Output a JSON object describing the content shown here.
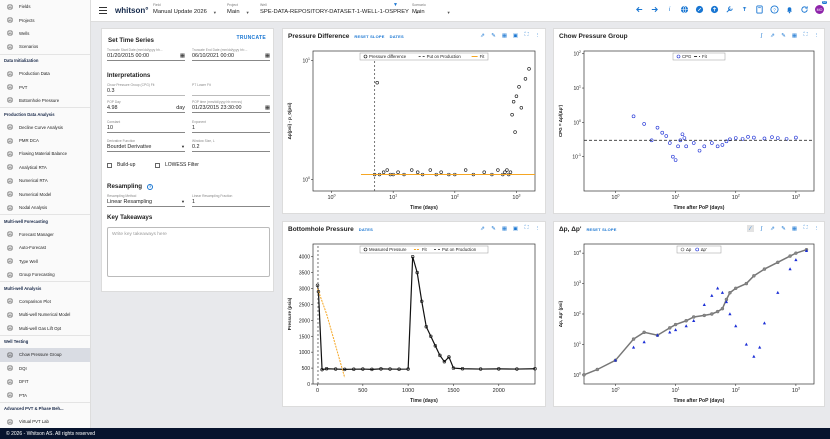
{
  "sidebar": {
    "items": [
      {
        "type": "item",
        "label": "Fields",
        "icon": "field-icon"
      },
      {
        "type": "item",
        "label": "Projects",
        "icon": "folder-icon"
      },
      {
        "type": "item",
        "label": "Wells",
        "icon": "well-icon"
      },
      {
        "type": "item",
        "label": "Scenarios",
        "icon": "scenario-icon"
      },
      {
        "type": "head",
        "label": "Data Initialization"
      },
      {
        "type": "item",
        "label": "Production Data",
        "icon": "table-icon"
      },
      {
        "type": "item",
        "label": "PVT",
        "icon": "flask-icon"
      },
      {
        "type": "item",
        "label": "Bottomhole Pressure",
        "icon": "gauge-icon"
      },
      {
        "type": "head",
        "label": "Production Data Analysis"
      },
      {
        "type": "item",
        "label": "Decline Curve Analysis",
        "icon": "trend-icon"
      },
      {
        "type": "item",
        "label": "PMR DCA",
        "icon": "chart-icon"
      },
      {
        "type": "item",
        "label": "Flowing Material Balance",
        "icon": "balance-icon"
      },
      {
        "type": "item",
        "label": "Analytical RTA",
        "icon": "analytics-icon"
      },
      {
        "type": "item",
        "label": "Numerical RTA",
        "icon": "grid-icon"
      },
      {
        "type": "item",
        "label": "Numerical Model",
        "icon": "model-icon"
      },
      {
        "type": "item",
        "label": "Nodal Analysis",
        "icon": "nodal-icon"
      },
      {
        "type": "head",
        "label": "Multi-well Forecasting"
      },
      {
        "type": "item",
        "label": "Forecast Manager",
        "icon": "list-icon"
      },
      {
        "type": "item",
        "label": "Auto-Forecast",
        "icon": "auto-icon"
      },
      {
        "type": "item",
        "label": "Type Well",
        "icon": "typewell-icon"
      },
      {
        "type": "item",
        "label": "Group Forecasting",
        "icon": "group-icon"
      },
      {
        "type": "head",
        "label": "Multi-well Analysis"
      },
      {
        "type": "item",
        "label": "Comparison Plot",
        "icon": "compare-icon"
      },
      {
        "type": "item",
        "label": "Multi-well Numerical Model",
        "icon": "model-icon"
      },
      {
        "type": "item",
        "label": "Multi-well Gas Lift Opt",
        "icon": "lift-icon"
      },
      {
        "type": "head",
        "label": "Well Testing"
      },
      {
        "type": "item",
        "label": "Chow Pressure Group",
        "icon": "chow-icon",
        "active": true
      },
      {
        "type": "item",
        "label": "DQI",
        "icon": "dqi-icon"
      },
      {
        "type": "item",
        "label": "DFIT",
        "icon": "dfit-icon"
      },
      {
        "type": "item",
        "label": "PTA",
        "icon": "pta-icon"
      },
      {
        "type": "head",
        "label": "Advanced PVT & Phase Beh..."
      },
      {
        "type": "item",
        "label": "Virtual PVT Lab",
        "icon": "lab-icon"
      }
    ]
  },
  "footer": "© 2026 - Whitson AS. All rights reserved",
  "topbar": {
    "logo": "whitson°",
    "field": {
      "label": "Field",
      "value": "Manual Update 2026"
    },
    "project": {
      "label": "Project",
      "value": "Main"
    },
    "well": {
      "label": "Well",
      "value": "SPE-DATA-REPOSITORY-DATASET-1-WELL-1-OSPREY"
    },
    "scenario": {
      "label": "Scenario",
      "value": "Main"
    },
    "avatar": "MO",
    "notifications": "10"
  },
  "settings": {
    "title": "Set Time Series",
    "truncate": "TRUNCATE",
    "start": {
      "label": "Truncate Start Date (mm/dd/yyyy hh...",
      "value": "01/20/2015 00:00"
    },
    "end": {
      "label": "Truncate End Date (mm/dd/yyyy hh:...",
      "value": "06/10/2021 00:00"
    },
    "interp_title": "Interpretations",
    "cpg": {
      "label": "Chow Pressure Group (CPG) Fit",
      "value": "0.3"
    },
    "lower_limit": {
      "label": "PT Lower Fit",
      "value": ""
    },
    "pop_day": {
      "label": "POP Day",
      "value": "4.98",
      "unit": "day"
    },
    "pop_time": {
      "label": "POP time (mm/dd/yyyy hh:mm:ss)",
      "value": "01/23/2015 23:30:00"
    },
    "constant": {
      "label": "Constant",
      "value": "10"
    },
    "exponent": {
      "label": "Exponent",
      "value": "1"
    },
    "deriv_fn": {
      "label": "Derivative Function",
      "value": "Bourdet Derivative"
    },
    "window": {
      "label": "Window Size, L",
      "value": "0.2"
    },
    "buildup": "Build-up",
    "lowess": "LOWESS Filter",
    "resampling_title": "Resampling",
    "resampling_method": {
      "label": "Resampling Method",
      "value": "Linear Resampling"
    },
    "resampling_fraction": {
      "label": "Linear Resampling Fraction",
      "value": "1"
    },
    "takeaways_title": "Key Takeaways",
    "takeaways_placeholder": "Write key takeaways here"
  },
  "charts": {
    "pd": {
      "title": "Pressure Difference",
      "links": [
        "RESET SLOPE",
        "DATES"
      ]
    },
    "cpg": {
      "title": "Chow Pressure Group",
      "links": []
    },
    "bhp": {
      "title": "Bottomhole Pressure",
      "links": [
        "DATES"
      ]
    },
    "dp": {
      "title": "Δp, Δp'",
      "links": [
        "RESET SLOPE"
      ]
    }
  },
  "chart_data": [
    {
      "type": "scatter",
      "title": "Pressure Difference",
      "xlabel": "Time (days)",
      "ylabel": "Δp(psi) - p_0(psi)",
      "x_scale": "log",
      "y_scale": "log",
      "xlim": [
        0.5,
        2000
      ],
      "ylim": [
        0.8,
        12
      ],
      "legend": [
        "Pressure difference",
        "Put on Production",
        "Fit"
      ],
      "legend_position": "top-center",
      "x_ticks": [
        "10^0",
        "10^1",
        "10^2",
        "10^3"
      ],
      "y_ticks": [
        "10^0",
        "10^1"
      ],
      "series": [
        {
          "name": "Pressure difference",
          "x": [
            5,
            5.5,
            6,
            7,
            8,
            9,
            10,
            12,
            15,
            20,
            25,
            30,
            40,
            50,
            60,
            80,
            100,
            150,
            200,
            300,
            400,
            500,
            600,
            650,
            700,
            750,
            800,
            850,
            900,
            950,
            1000,
            1100,
            1200,
            1400,
            1600
          ],
          "y": [
            1.1,
            6.5,
            1.1,
            1.15,
            1.2,
            1.1,
            1.1,
            1.15,
            1.1,
            1.2,
            1.15,
            1.1,
            1.2,
            1.1,
            1.15,
            1.1,
            1.1,
            1.2,
            1.1,
            1.15,
            1.1,
            1.2,
            1.1,
            1.15,
            1.2,
            1.1,
            1.15,
            3.5,
            4.5,
            2.5,
            5.0,
            6.0,
            4.0,
            7.0,
            8.5
          ]
        },
        {
          "name": "Put on Production",
          "x": [
            5,
            5
          ],
          "y": [
            0.8,
            12
          ]
        },
        {
          "name": "Fit",
          "x": [
            3,
            2000
          ],
          "y": [
            1.1,
            1.1
          ]
        }
      ]
    },
    {
      "type": "scatter",
      "title": "Chow Pressure Group",
      "xlabel": "Time after PoP (days)",
      "ylabel": "CPG = Δp/(Δp')",
      "x_scale": "log",
      "y_scale": "log",
      "xlim": [
        0.3,
        2000
      ],
      "ylim": [
        0.01,
        120
      ],
      "legend": [
        "CPG",
        "Fit"
      ],
      "legend_position": "top-center",
      "x_ticks": [
        "10^0",
        "10^1",
        "10^2",
        "10^3"
      ],
      "y_ticks": [
        "10^-1",
        "10^0",
        "10^1",
        "10^2"
      ],
      "series": [
        {
          "name": "CPG",
          "x": [
            2,
            3,
            4,
            5,
            6,
            7,
            8,
            9,
            10,
            11,
            12,
            13,
            14,
            15,
            20,
            25,
            30,
            40,
            50,
            60,
            70,
            80,
            100,
            130,
            160,
            200,
            300,
            400,
            500,
            700,
            1000
          ],
          "y": [
            1.5,
            0.9,
            0.3,
            0.7,
            0.5,
            0.4,
            0.25,
            0.1,
            0.08,
            0.2,
            0.3,
            0.45,
            0.35,
            0.2,
            0.25,
            0.15,
            0.2,
            0.25,
            0.2,
            0.22,
            0.28,
            0.32,
            0.35,
            0.33,
            0.38,
            0.36,
            0.34,
            0.37,
            0.35,
            0.33,
            0.36
          ]
        },
        {
          "name": "Fit",
          "x": [
            0.3,
            2000
          ],
          "y": [
            0.3,
            0.3
          ]
        }
      ]
    },
    {
      "type": "scatter",
      "title": "Bottomhole Pressure",
      "xlabel": "Time (days)",
      "ylabel": "Pressure (psia)",
      "xlim": [
        -50,
        2400
      ],
      "ylim": [
        0,
        4400
      ],
      "legend": [
        "Measured Pressure",
        "Fit",
        "Put on Production"
      ],
      "legend_position": "top-center",
      "x_ticks": [
        "0",
        "500",
        "1000",
        "1500",
        "2000"
      ],
      "y_ticks": [
        "0",
        "500",
        "1000",
        "1500",
        "2000",
        "2500",
        "3000",
        "3500",
        "4000"
      ],
      "series": [
        {
          "name": "Measured Pressure",
          "x": [
            0,
            10,
            50,
            100,
            200,
            300,
            400,
            500,
            600,
            700,
            800,
            900,
            1000,
            1050,
            1100,
            1150,
            1200,
            1250,
            1300,
            1350,
            1400,
            1450,
            1500,
            1600,
            1800,
            2000,
            2200,
            2400
          ],
          "y": [
            3100,
            2900,
            450,
            480,
            470,
            460,
            465,
            470,
            460,
            475,
            470,
            465,
            470,
            4000,
            3500,
            2600,
            1800,
            1500,
            1200,
            900,
            700,
            850,
            500,
            480,
            470,
            475,
            470,
            480
          ]
        },
        {
          "name": "Fit",
          "x": [
            0,
            100,
            200,
            300
          ],
          "y": [
            3000,
            2200,
            1200,
            200
          ]
        },
        {
          "name": "Put on Production",
          "x": [
            5,
            5
          ],
          "y": [
            0,
            4400
          ]
        }
      ]
    },
    {
      "type": "scatter",
      "title": "Δp, Δp'",
      "xlabel": "Time after PoP (days)",
      "ylabel": "Δp, Δp' (psi)",
      "x_scale": "log",
      "y_scale": "log",
      "xlim": [
        0.3,
        2000
      ],
      "ylim": [
        0.5,
        20000
      ],
      "legend": [
        "Δp",
        "Δp'"
      ],
      "legend_position": "top-center",
      "x_ticks": [
        "10^0",
        "10^1",
        "10^2",
        "10^3"
      ],
      "y_ticks": [
        "10^0",
        "10^1",
        "10^2",
        "10^3",
        "10^4"
      ],
      "series": [
        {
          "name": "Δp",
          "x": [
            0.3,
            0.5,
            1,
            2,
            3,
            5,
            8,
            10,
            15,
            20,
            30,
            40,
            50,
            60,
            70,
            80,
            100,
            150,
            200,
            300,
            500,
            800,
            1000,
            1500
          ],
          "y": [
            1,
            1.5,
            3,
            15,
            25,
            20,
            35,
            45,
            60,
            80,
            90,
            100,
            120,
            150,
            300,
            500,
            700,
            1000,
            1800,
            3000,
            5000,
            8000,
            10000,
            13000
          ]
        },
        {
          "name": "Δp'",
          "x": [
            1,
            2,
            3,
            5,
            8,
            10,
            15,
            20,
            30,
            40,
            50,
            60,
            70,
            80,
            100,
            150,
            200,
            250,
            300,
            500,
            800,
            1000,
            1500
          ],
          "y": [
            3,
            8,
            12,
            20,
            25,
            30,
            40,
            60,
            200,
            400,
            700,
            500,
            250,
            100,
            40,
            10,
            4,
            8,
            50,
            500,
            3000,
            6000,
            12000
          ]
        }
      ]
    }
  ]
}
